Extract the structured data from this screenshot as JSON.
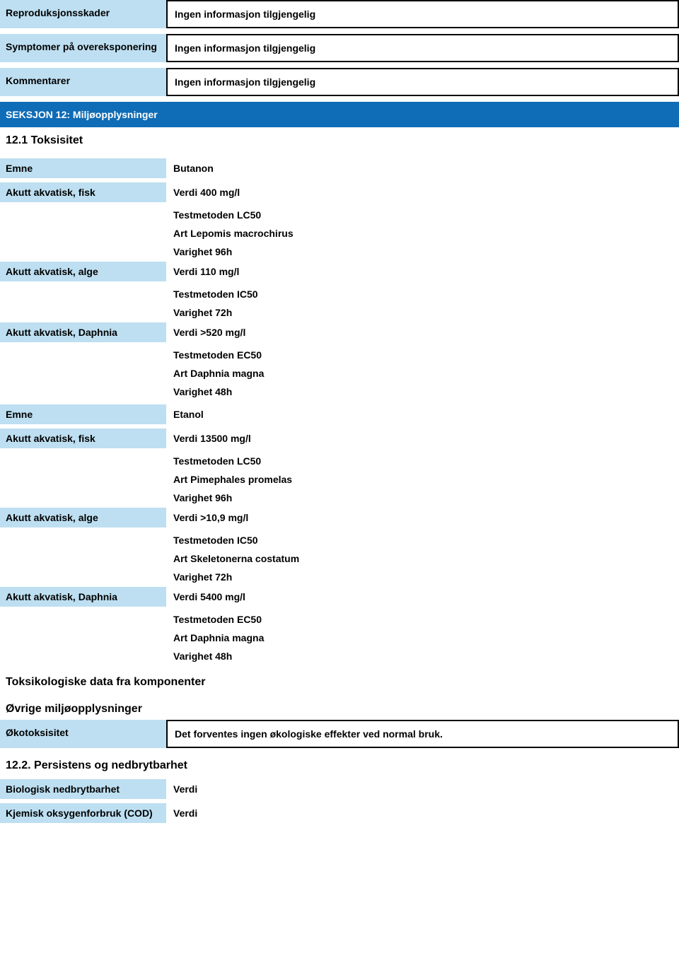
{
  "top": {
    "rows": [
      {
        "label": "Reproduksjonsskader",
        "value": "Ingen informasjon tilgjengelig"
      },
      {
        "label": "Symptomer på overeksponering",
        "value": "Ingen informasjon tilgjengelig"
      },
      {
        "label": "Kommentarer",
        "value": "Ingen informasjon tilgjengelig"
      }
    ]
  },
  "section12": {
    "title": "SEKSJON 12: Miljøopplysninger",
    "sub1": "12.1 Toksisitet",
    "substances": [
      {
        "emne_label": "Emne",
        "emne_value": "Butanon",
        "rows": [
          {
            "label": "Akutt akvatisk, fisk",
            "lines": [
              "Verdi  400 mg/l",
              "Testmetoden    LC50",
              "Art Lepomis macrochirus",
              "Varighet   96h"
            ]
          },
          {
            "label": "Akutt akvatisk, alge",
            "lines": [
              "Verdi  110 mg/l",
              "Testmetoden    IC50",
              "Varighet   72h"
            ]
          },
          {
            "label": "Akutt akvatisk, Daphnia",
            "lines": [
              "Verdi  >520 mg/l",
              "Testmetoden    EC50",
              "Art Daphnia magna",
              "Varighet   48h"
            ]
          }
        ]
      },
      {
        "emne_label": "Emne",
        "emne_value": "Etanol",
        "rows": [
          {
            "label": "Akutt akvatisk, fisk",
            "lines": [
              "Verdi  13500 mg/l",
              "Testmetoden    LC50",
              "Art Pimephales promelas",
              "Varighet   96h"
            ]
          },
          {
            "label": "Akutt akvatisk, alge",
            "lines": [
              "Verdi  >10,9 mg/l",
              "Testmetoden    IC50",
              "Art Skeletonerna costatum",
              "Varighet   72h"
            ]
          },
          {
            "label": "Akutt akvatisk, Daphnia",
            "lines": [
              "Verdi  5400 mg/l",
              "Testmetoden    EC50",
              "Art Daphnia magna",
              "Varighet   48h"
            ]
          }
        ]
      }
    ],
    "tox_heading": "Toksikologiske data fra komponenter",
    "other_heading": "Øvrige miljøopplysninger",
    "ecotox": {
      "label": "Økotoksisitet",
      "value": "Det forventes ingen økologiske effekter ved normal bruk."
    },
    "sub2": "12.2. Persistens og nedbrytbarhet",
    "persist_rows": [
      {
        "label": "Biologisk nedbrytbarhet",
        "value": "Verdi"
      },
      {
        "label": "Kjemisk oksygenforbruk (COD)",
        "value": "Verdi"
      }
    ]
  },
  "colors": {
    "light_blue": "#bddff1",
    "section_blue": "#0f6cb6",
    "border": "#000000",
    "text": "#000000",
    "bg": "#ffffff"
  }
}
